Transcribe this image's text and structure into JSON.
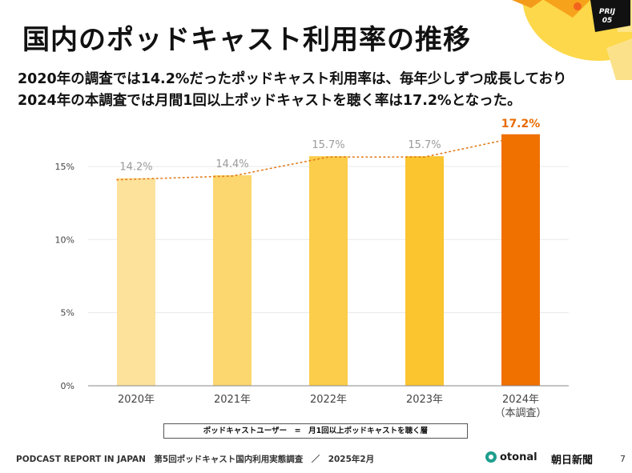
{
  "header": {
    "title": "国内のポッドキャスト利用率の推移",
    "subtitle_line1": "2020年の調査では14.2%だったポッドキャスト利用率は、毎年少しずつ成長しており",
    "subtitle_line2": "2024年の本調査では月間1回以上ポッドキャストを聴く率は17.2%となった。",
    "badge": "PRIJ\n05"
  },
  "colors": {
    "bars": [
      "#fde29b",
      "#fcd66e",
      "#fbcd4a",
      "#fbc530",
      "#f07000"
    ],
    "highlight_label": "#e86a00",
    "value_label": "#9a9a9a",
    "trend_line": "#e07a1a",
    "gridline": "#e8e8e8"
  },
  "chart_data": {
    "type": "bar",
    "title": "",
    "categories": [
      "2020年",
      "2021年",
      "2022年",
      "2023年",
      "2024年"
    ],
    "category_sublabels": [
      "",
      "",
      "",
      "",
      "（本調査）"
    ],
    "values": [
      14.2,
      14.4,
      15.7,
      15.7,
      17.2
    ],
    "value_labels": [
      "14.2%",
      "14.4%",
      "15.7%",
      "15.7%",
      "17.2%"
    ],
    "highlight_index": 4,
    "trend_line": "dotted",
    "ylim": [
      0,
      20
    ],
    "yticks": [
      0,
      5,
      10,
      15
    ],
    "ytick_labels": [
      "0%",
      "5%",
      "10%",
      "15%"
    ],
    "grid": true,
    "xlabel": "",
    "ylabel": ""
  },
  "legend": {
    "text": "ポッドキャストユーザー　=　月1回以上ポッドキャストを聴く層"
  },
  "footer": {
    "text": "PODCAST REPORT IN JAPAN　第5回ポッドキャスト国内利用実態調査　／　2025年2月",
    "logo_otonal": "otonal",
    "logo_asahi": "朝日新聞",
    "page_number": "7"
  }
}
